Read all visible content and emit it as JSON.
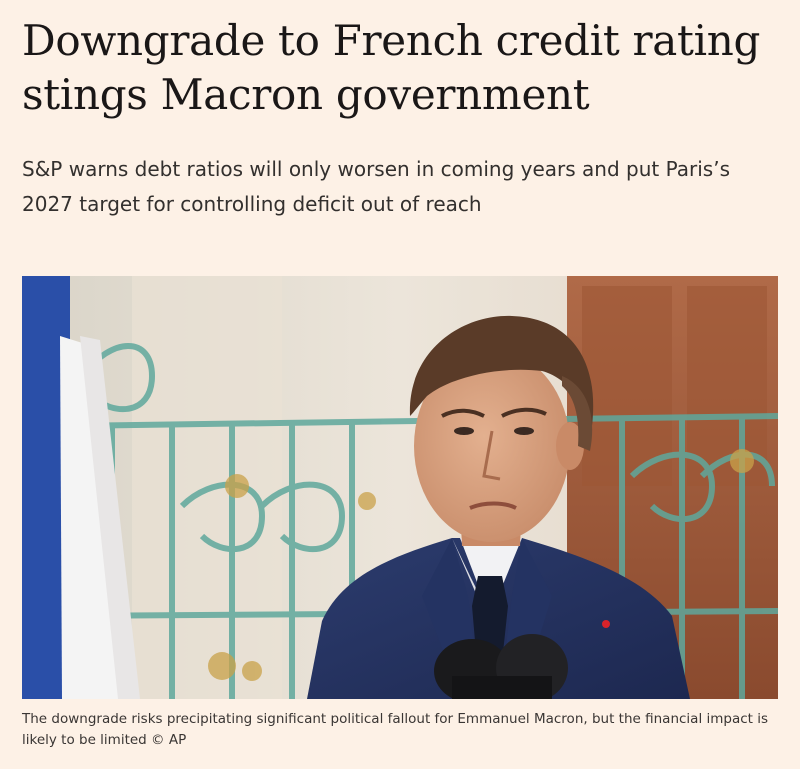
{
  "article": {
    "headline": "Downgrade to French credit rating stings Macron government",
    "standfirst": "S&P warns debt ratios will only worsen in coming years and put Paris’s 2027 target for controlling deficit out of reach",
    "image": {
      "subject": "man-in-suit-speaking-at-microphones",
      "flag_colors": [
        "#2a4fa8",
        "#f4f4f4",
        "#c8242e"
      ],
      "railing_color": "#5fa89c"
    },
    "caption": "The downgrade risks precipitating significant political fallout for Emmanuel Macron, but the financial impact is likely to be limited © AP"
  },
  "colors": {
    "background": "#fdf1e6",
    "headline": "#1a1717",
    "text": "#33302e"
  }
}
